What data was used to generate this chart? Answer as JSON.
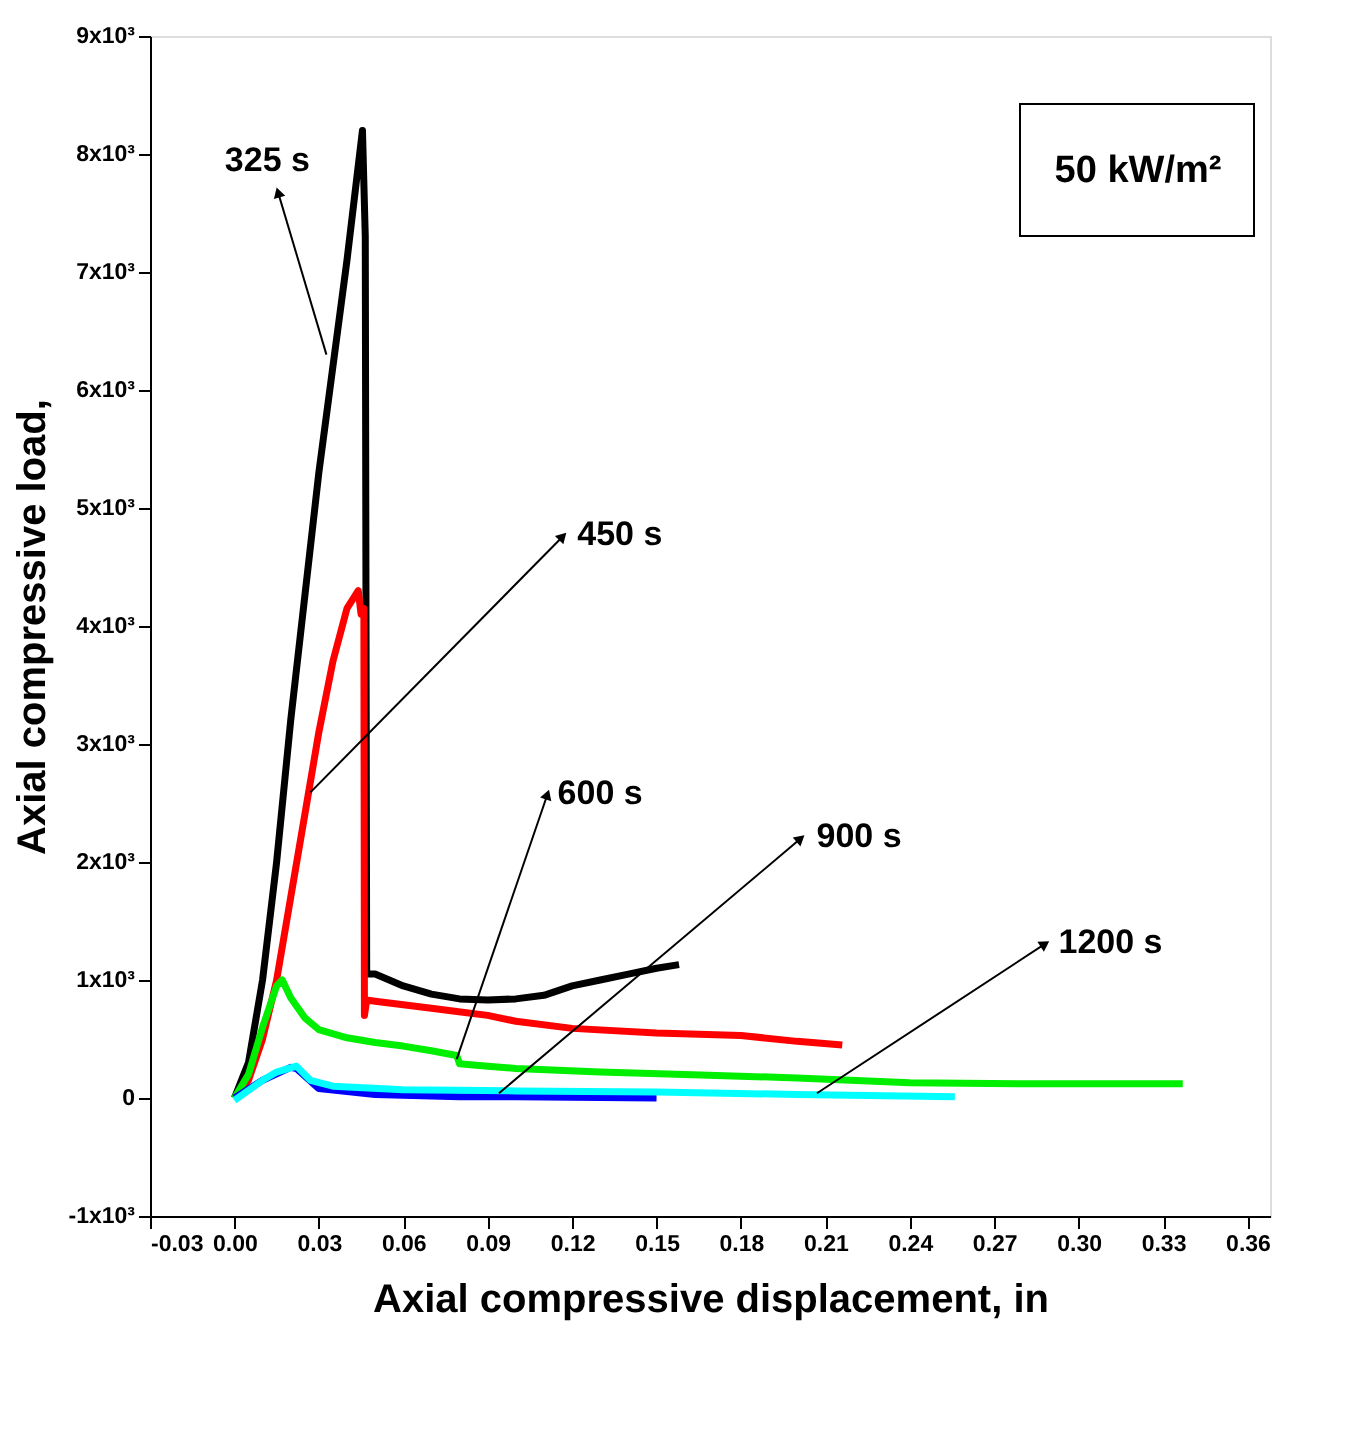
{
  "chart_data": {
    "type": "line",
    "xlabel": "Axial compressive displacement, in",
    "ylabel": "Axial compressive load,",
    "xlim": [
      -0.03,
      0.368
    ],
    "ylim": [
      -1000,
      9000
    ],
    "xticks": [
      {
        "value": -0.03,
        "label": "-0.03"
      },
      {
        "value": 0,
        "label": "0.00"
      },
      {
        "value": 0.03,
        "label": "0.03"
      },
      {
        "value": 0.06,
        "label": "0.06"
      },
      {
        "value": 0.09,
        "label": "0.09"
      },
      {
        "value": 0.12,
        "label": "0.12"
      },
      {
        "value": 0.15,
        "label": "0.15"
      },
      {
        "value": 0.18,
        "label": "0.18"
      },
      {
        "value": 0.21,
        "label": "0.21"
      },
      {
        "value": 0.24,
        "label": "0.24"
      },
      {
        "value": 0.27,
        "label": "0.27"
      },
      {
        "value": 0.3,
        "label": "0.30"
      },
      {
        "value": 0.33,
        "label": "0.33"
      },
      {
        "value": 0.36,
        "label": "0.36"
      }
    ],
    "yticks": [
      {
        "value": -1000,
        "label": "-1x10³"
      },
      {
        "value": 0,
        "label": "0"
      },
      {
        "value": 1000,
        "label": "1x10³"
      },
      {
        "value": 2000,
        "label": "2x10³"
      },
      {
        "value": 3000,
        "label": "3x10³"
      },
      {
        "value": 4000,
        "label": "4x10³"
      },
      {
        "value": 5000,
        "label": "5x10³"
      },
      {
        "value": 6000,
        "label": "6x10³"
      },
      {
        "value": 7000,
        "label": "7x10³"
      },
      {
        "value": 8000,
        "label": "8x10³"
      },
      {
        "value": 9000,
        "label": "9x10³"
      }
    ],
    "marker": "none",
    "line_style": "solid",
    "series": [
      {
        "color": "#000000",
        "x": [
          0,
          0.005,
          0.01,
          0.015,
          0.02,
          0.03,
          0.04,
          0.0455,
          0.0465,
          0.047,
          0.05,
          0.06,
          0.07,
          0.08,
          0.09,
          0.1,
          0.11,
          0.12,
          0.13,
          0.14,
          0.15,
          0.158
        ],
        "values": [
          0,
          300,
          1000,
          2000,
          3200,
          5300,
          7100,
          8200,
          7300,
          1050,
          1050,
          950,
          880,
          840,
          830,
          840,
          870,
          950,
          1000,
          1050,
          1100,
          1130
        ]
      },
      {
        "color": "#ff0000",
        "x": [
          0,
          0.005,
          0.01,
          0.015,
          0.02,
          0.025,
          0.03,
          0.035,
          0.04,
          0.044,
          0.045,
          0.046,
          0.0462,
          0.047,
          0.05,
          0.07,
          0.09,
          0.1,
          0.12,
          0.15,
          0.18,
          0.2,
          0.216
        ],
        "values": [
          0,
          150,
          500,
          1000,
          1700,
          2400,
          3100,
          3700,
          4150,
          4300,
          4100,
          4150,
          700,
          830,
          820,
          760,
          700,
          650,
          590,
          550,
          530,
          480,
          450
        ]
      },
      {
        "color": "#00ee00",
        "x": [
          0,
          0.005,
          0.01,
          0.015,
          0.017,
          0.02,
          0.025,
          0.03,
          0.04,
          0.05,
          0.06,
          0.07,
          0.079,
          0.08,
          0.09,
          0.1,
          0.13,
          0.16,
          0.2,
          0.24,
          0.28,
          0.337
        ],
        "values": [
          0,
          200,
          600,
          950,
          1000,
          850,
          680,
          580,
          510,
          470,
          440,
          400,
          360,
          290,
          270,
          250,
          220,
          200,
          170,
          130,
          120,
          120
        ]
      },
      {
        "color": "#0000ff",
        "x": [
          0,
          0.01,
          0.02,
          0.022,
          0.03,
          0.05,
          0.08,
          0.1,
          0.15
        ],
        "values": [
          0,
          150,
          260,
          250,
          80,
          30,
          10,
          10,
          0
        ]
      },
      {
        "color": "#00ffff",
        "x": [
          0,
          0.01,
          0.015,
          0.022,
          0.027,
          0.035,
          0.06,
          0.1,
          0.15,
          0.2,
          0.256
        ],
        "values": [
          -20,
          150,
          220,
          270,
          150,
          100,
          70,
          60,
          50,
          30,
          10
        ]
      }
    ],
    "annotations": [
      {
        "text": "325 s",
        "x": 0.0327,
        "y": 6300
      },
      {
        "text": "450 s",
        "x": 0.027,
        "y": 2590
      },
      {
        "text": "600 s",
        "x": 0.079,
        "y": 330
      },
      {
        "text": "900 s",
        "x": 0.094,
        "y": 40
      },
      {
        "text": "1200 s",
        "x": 0.207,
        "y": 40
      },
      "50 kW/m²"
    ]
  }
}
